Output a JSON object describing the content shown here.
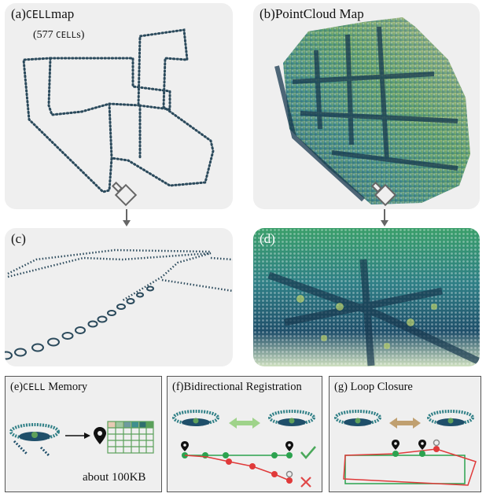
{
  "panels": {
    "a": {
      "prefix": "(a)",
      "name": "CELL",
      "suffix": "map",
      "subtitle_open": "(577 ",
      "subtitle_sc": "CELL",
      "subtitle_close": "s)"
    },
    "b": {
      "title": "(b)PointCloud Map"
    },
    "c": {
      "label": "(c)"
    },
    "d": {
      "label": "(d)"
    },
    "e": {
      "prefix": "(e)",
      "name": "CELL",
      "suffix": " Memory",
      "size_text": "about 100KB"
    },
    "f": {
      "title": "(f)Bidirectional Registration"
    },
    "g": {
      "title": "(g) Loop Closure"
    }
  },
  "colors": {
    "panel_bg": "#efefef",
    "dot_dark": "#2b4a5c",
    "cloud_teal": "#2f7f86",
    "cloud_green": "#5fa05a",
    "cloud_tan": "#c9b98a",
    "arrow_green": "#9fd38a",
    "arrow_brown": "#c0a070",
    "track_green": "#2ca24f",
    "track_red": "#e03a3a",
    "check_green": "#4aa85a",
    "cross_red": "#e04848"
  },
  "icons": [
    "camera-icon",
    "down-arrow-icon",
    "map-pin-icon",
    "checkmark-icon",
    "cross-icon",
    "double-arrow-icon"
  ]
}
